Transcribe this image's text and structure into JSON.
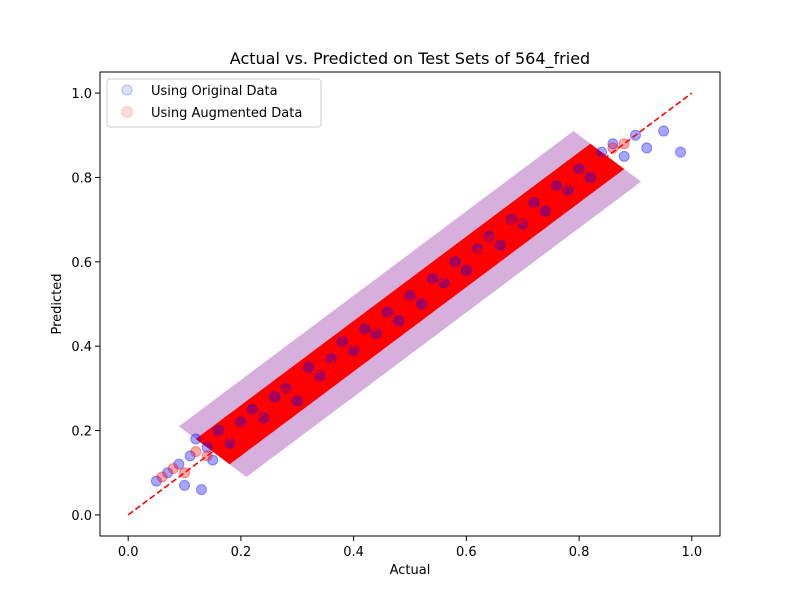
{
  "chart_data": {
    "type": "scatter",
    "title": "Actual vs. Predicted on Test Sets of 564_fried",
    "xlabel": "Actual",
    "ylabel": "Predicted",
    "xlim": [
      -0.05,
      1.05
    ],
    "ylim": [
      -0.05,
      1.05
    ],
    "xticks": [
      "0.0",
      "0.2",
      "0.4",
      "0.6",
      "0.8",
      "1.0"
    ],
    "yticks": [
      "0.0",
      "0.2",
      "0.4",
      "0.6",
      "0.8",
      "1.0"
    ],
    "grid": false,
    "legend_position": "top-left",
    "reference_line": {
      "from": [
        0,
        0
      ],
      "to": [
        1,
        1
      ],
      "style": "dashed",
      "color": "#ff0000"
    },
    "series": [
      {
        "name": "Using Original Data",
        "color": "#0000ff",
        "opacity": 0.12,
        "points": [
          [
            0.05,
            0.08
          ],
          [
            0.07,
            0.1
          ],
          [
            0.09,
            0.12
          ],
          [
            0.1,
            0.07
          ],
          [
            0.11,
            0.14
          ],
          [
            0.12,
            0.18
          ],
          [
            0.13,
            0.06
          ],
          [
            0.14,
            0.16
          ],
          [
            0.15,
            0.13
          ],
          [
            0.16,
            0.2
          ],
          [
            0.18,
            0.17
          ],
          [
            0.2,
            0.22
          ],
          [
            0.22,
            0.25
          ],
          [
            0.24,
            0.23
          ],
          [
            0.26,
            0.28
          ],
          [
            0.28,
            0.3
          ],
          [
            0.3,
            0.27
          ],
          [
            0.32,
            0.35
          ],
          [
            0.34,
            0.33
          ],
          [
            0.36,
            0.37
          ],
          [
            0.38,
            0.41
          ],
          [
            0.4,
            0.39
          ],
          [
            0.42,
            0.44
          ],
          [
            0.44,
            0.43
          ],
          [
            0.46,
            0.48
          ],
          [
            0.48,
            0.46
          ],
          [
            0.5,
            0.52
          ],
          [
            0.52,
            0.5
          ],
          [
            0.54,
            0.56
          ],
          [
            0.56,
            0.55
          ],
          [
            0.58,
            0.6
          ],
          [
            0.6,
            0.58
          ],
          [
            0.62,
            0.63
          ],
          [
            0.64,
            0.66
          ],
          [
            0.66,
            0.64
          ],
          [
            0.68,
            0.7
          ],
          [
            0.7,
            0.69
          ],
          [
            0.72,
            0.74
          ],
          [
            0.74,
            0.72
          ],
          [
            0.76,
            0.78
          ],
          [
            0.78,
            0.77
          ],
          [
            0.8,
            0.82
          ],
          [
            0.82,
            0.8
          ],
          [
            0.84,
            0.86
          ],
          [
            0.86,
            0.88
          ],
          [
            0.88,
            0.85
          ],
          [
            0.9,
            0.9
          ],
          [
            0.92,
            0.87
          ],
          [
            0.95,
            0.91
          ],
          [
            0.98,
            0.86
          ]
        ]
      },
      {
        "name": "Using Augmented Data",
        "color": "#ff0000",
        "opacity": 0.12,
        "points": [
          [
            0.06,
            0.09
          ],
          [
            0.08,
            0.11
          ],
          [
            0.1,
            0.1
          ],
          [
            0.12,
            0.15
          ],
          [
            0.14,
            0.14
          ],
          [
            0.16,
            0.17
          ],
          [
            0.18,
            0.19
          ],
          [
            0.2,
            0.2
          ],
          [
            0.22,
            0.23
          ],
          [
            0.24,
            0.26
          ],
          [
            0.26,
            0.25
          ],
          [
            0.28,
            0.29
          ],
          [
            0.3,
            0.31
          ],
          [
            0.32,
            0.32
          ],
          [
            0.34,
            0.36
          ],
          [
            0.36,
            0.35
          ],
          [
            0.38,
            0.39
          ],
          [
            0.4,
            0.41
          ],
          [
            0.42,
            0.42
          ],
          [
            0.44,
            0.45
          ],
          [
            0.46,
            0.46
          ],
          [
            0.48,
            0.49
          ],
          [
            0.5,
            0.5
          ],
          [
            0.52,
            0.53
          ],
          [
            0.54,
            0.54
          ],
          [
            0.56,
            0.57
          ],
          [
            0.58,
            0.58
          ],
          [
            0.6,
            0.61
          ],
          [
            0.62,
            0.62
          ],
          [
            0.64,
            0.65
          ],
          [
            0.66,
            0.66
          ],
          [
            0.68,
            0.69
          ],
          [
            0.7,
            0.7
          ],
          [
            0.72,
            0.72
          ],
          [
            0.74,
            0.75
          ],
          [
            0.76,
            0.76
          ],
          [
            0.78,
            0.79
          ],
          [
            0.8,
            0.8
          ],
          [
            0.82,
            0.83
          ],
          [
            0.84,
            0.84
          ],
          [
            0.86,
            0.87
          ],
          [
            0.88,
            0.88
          ]
        ]
      }
    ]
  }
}
